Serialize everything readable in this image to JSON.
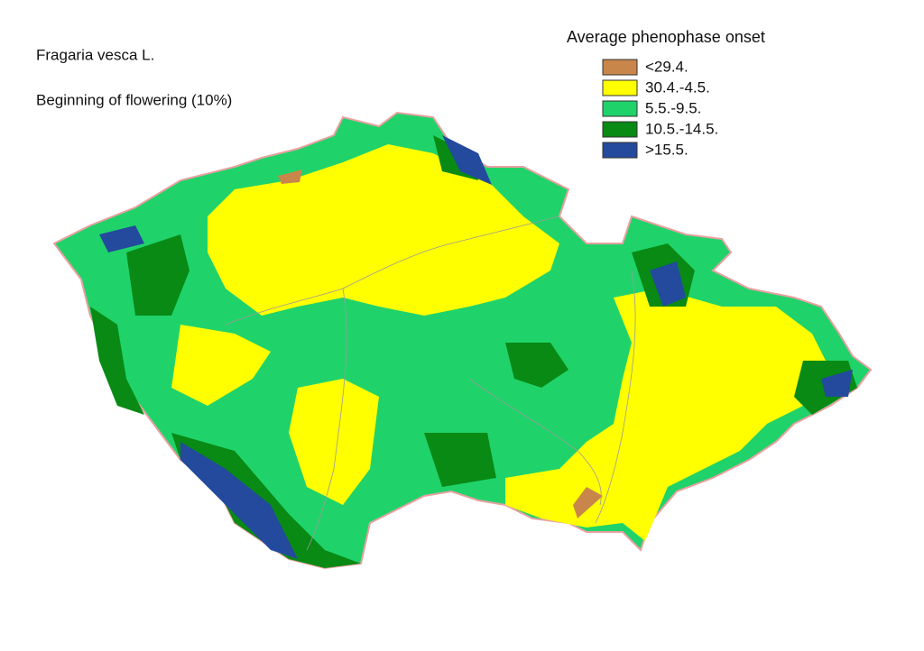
{
  "map": {
    "title": "Fragaria vesca L.",
    "subtitle": "Beginning of flowering (10%)",
    "legend": {
      "title": "Average phenophase onset",
      "items": [
        {
          "label": "<29.4.",
          "color": "#c8864a"
        },
        {
          "label": "30.4.-4.5.",
          "color": "#ffff00"
        },
        {
          "label": "5.5.-9.5.",
          "color": "#1fd36a"
        },
        {
          "label": "10.5.-14.5.",
          "color": "#088a14"
        },
        {
          "label": ">15.5.",
          "color": "#234a9c"
        }
      ]
    }
  }
}
